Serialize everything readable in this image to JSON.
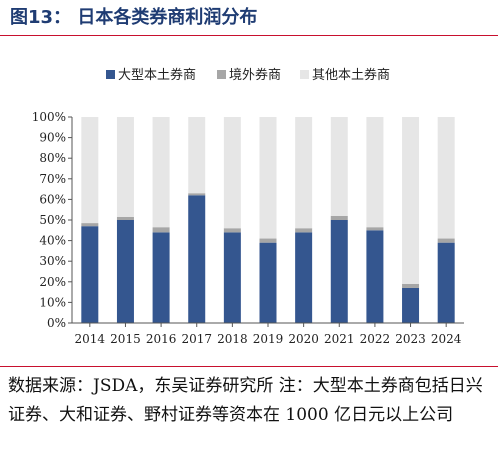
{
  "figure": {
    "title": "图13：  日本各类券商利润分布",
    "source": "数据来源：JSDA，东吴证券研究所  注：大型本土券商包括日兴证券、大和证券、野村证券等资本在 1000 亿日元以上公司"
  },
  "colors": {
    "large": "#34568f",
    "overseas": "#a6a6a6",
    "other": "#e6e6e6",
    "title": "#1f3c73",
    "rule": "#c8102e"
  },
  "chart_data": {
    "type": "bar",
    "stacked": true,
    "normalized": true,
    "title": "",
    "xlabel": "",
    "ylabel": "",
    "ylim": [
      0,
      100
    ],
    "y_tick_labels": [
      "0%",
      "10%",
      "20%",
      "30%",
      "40%",
      "50%",
      "60%",
      "70%",
      "80%",
      "90%",
      "100%"
    ],
    "grid": false,
    "legend": "top",
    "categories": [
      "2014",
      "2015",
      "2016",
      "2017",
      "2018",
      "2019",
      "2020",
      "2021",
      "2022",
      "2023",
      "2024"
    ],
    "series": [
      {
        "name": "大型本土券商",
        "color": "#34568f",
        "values": [
          47,
          50,
          44,
          62,
          44,
          39,
          44,
          50,
          45,
          17,
          39
        ]
      },
      {
        "name": "境外券商",
        "color": "#a6a6a6",
        "values": [
          1.5,
          1.5,
          2.5,
          1,
          2,
          2,
          2,
          2,
          1.5,
          2,
          2
        ]
      },
      {
        "name": "其他本土券商",
        "color": "#e6e6e6",
        "values": [
          51.5,
          48.5,
          53.5,
          37,
          54,
          59,
          54,
          48,
          53.5,
          81,
          59
        ]
      }
    ]
  }
}
